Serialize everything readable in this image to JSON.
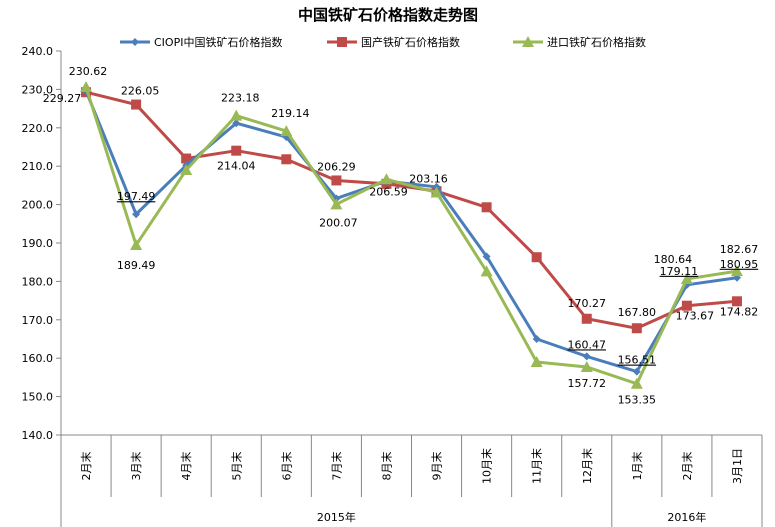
{
  "chart_data": {
    "type": "line",
    "title": "中国铁矿石价格指数走势图",
    "xlabel": "",
    "ylabel": "",
    "ylim": [
      140,
      240
    ],
    "ytick_step": 10,
    "yticks": [
      "140.0",
      "150.0",
      "160.0",
      "170.0",
      "180.0",
      "190.0",
      "200.0",
      "210.0",
      "220.0",
      "230.0",
      "240.0"
    ],
    "grid": false,
    "legend_position": "top",
    "categories": [
      "2月末",
      "3月末",
      "4月末",
      "5月末",
      "6月末",
      "7月末",
      "8月末",
      "9月末",
      "10月末",
      "11月末",
      "12月末",
      "1月末",
      "2月末",
      "3月1日"
    ],
    "year_groups": [
      {
        "label": "2015年",
        "count": 11
      },
      {
        "label": "2016年",
        "count": 3
      }
    ],
    "series": [
      {
        "name": "CIOPI中国铁矿石价格指数",
        "color": "#4A7EBB",
        "marker": "diamond",
        "values": [
          229.6,
          197.49,
          210.2,
          221.2,
          217.6,
          201.6,
          206.1,
          204.6,
          186.5,
          165.0,
          160.47,
          156.51,
          179.11,
          180.95
        ],
        "labels": [
          "",
          "197.49",
          "",
          "",
          "",
          "",
          "",
          "",
          "",
          "",
          "160.47",
          "156.51",
          "179.11",
          "180.95"
        ],
        "underline_labels": true
      },
      {
        "name": "国产铁矿石价格指数",
        "color": "#BE4B48",
        "marker": "square",
        "values": [
          229.27,
          226.05,
          212.0,
          214.04,
          211.8,
          206.29,
          205.4,
          203.5,
          199.3,
          186.3,
          170.27,
          167.8,
          173.67,
          174.82
        ],
        "labels": [
          "229.27",
          "226.05",
          "",
          "214.04",
          "",
          "206.29",
          "",
          "",
          "",
          "",
          "170.27",
          "167.80",
          "173.67",
          "174.82"
        ]
      },
      {
        "name": "进口铁矿石价格指数",
        "color": "#98B954",
        "marker": "triangle",
        "values": [
          230.62,
          189.49,
          209.0,
          223.18,
          219.14,
          200.07,
          206.59,
          203.16,
          182.6,
          159.0,
          157.72,
          153.35,
          180.64,
          182.67
        ],
        "labels": [
          "230.62",
          "189.49",
          "",
          "223.18",
          "219.14",
          "200.07",
          "206.59",
          "203.16",
          "",
          "",
          "157.72",
          "153.35",
          "180.64",
          "182.67"
        ]
      }
    ]
  }
}
